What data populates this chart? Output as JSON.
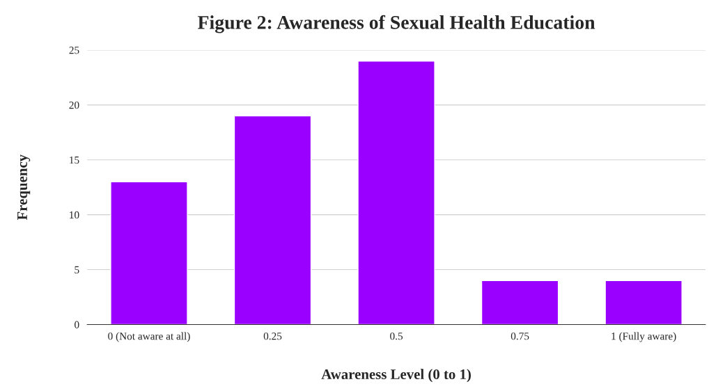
{
  "chart_data": {
    "type": "bar",
    "title": "Figure 2: Awareness of Sexual Health Education",
    "xlabel": "Awareness Level (0 to 1)",
    "ylabel": "Frequency",
    "categories": [
      "0 (Not aware at all)",
      "0.25",
      "0.5",
      "0.75",
      "1 (Fully aware)"
    ],
    "values": [
      13,
      19,
      24,
      4,
      4
    ],
    "color": "#9900ff",
    "ylim": [
      0,
      25
    ],
    "yticks": [
      0,
      5,
      10,
      15,
      20,
      25
    ],
    "grid": "y"
  }
}
